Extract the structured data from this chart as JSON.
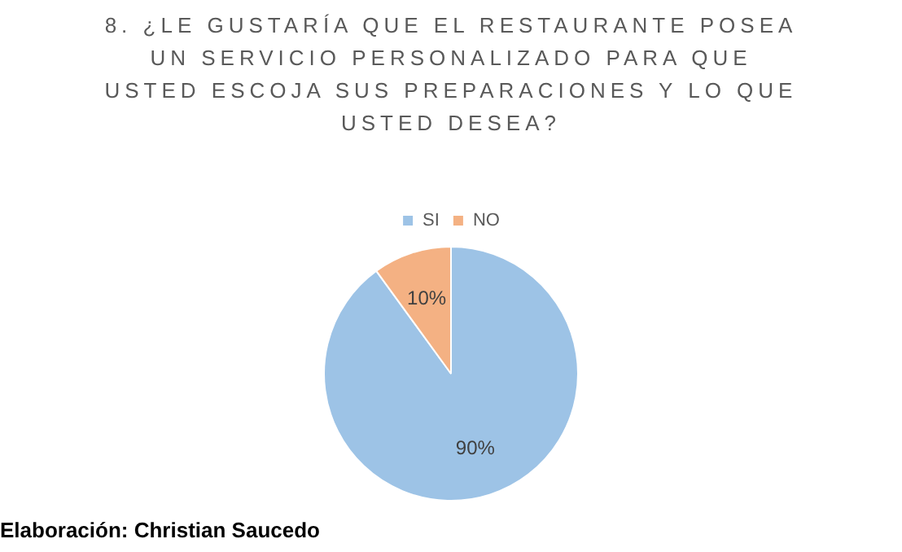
{
  "chart_data": {
    "type": "pie",
    "title": "8. ¿LE GUSTARÍA QUE EL RESTAURANTE POSEA UN SERVICIO PERSONALIZADO PARA QUE USTED ESCOJA SUS PREPARACIONES Y LO QUE USTED DESEA?",
    "categories": [
      "SI",
      "NO"
    ],
    "values": [
      90,
      10
    ],
    "value_labels": [
      "90%",
      "10%"
    ],
    "colors": [
      "#9dc3e6",
      "#f4b183"
    ],
    "legend": "top",
    "annotations": [
      "Elaboración: Christian Saucedo"
    ]
  }
}
